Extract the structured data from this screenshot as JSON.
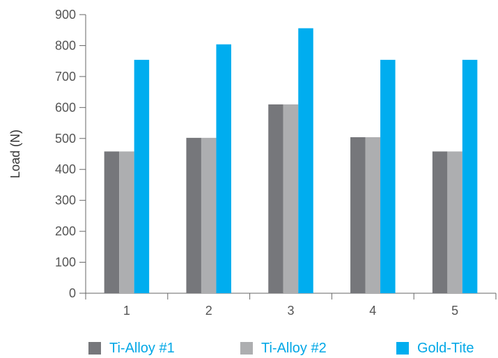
{
  "chart_data": {
    "type": "bar",
    "categories": [
      "1",
      "2",
      "3",
      "4",
      "5"
    ],
    "series": [
      {
        "name": "Ti-Alloy #1",
        "color": "#76777b",
        "values": [
          458,
          502,
          610,
          504,
          458
        ]
      },
      {
        "name": "Ti-Alloy #2",
        "color": "#adaeb0",
        "values": [
          458,
          502,
          610,
          504,
          458
        ]
      },
      {
        "name": "Gold-Tite",
        "color": "#00adef",
        "values": [
          754,
          804,
          856,
          754,
          754
        ]
      }
    ],
    "title": "",
    "xlabel": "",
    "ylabel": "Load (N)",
    "ylim": [
      0,
      900
    ],
    "yticks": [
      0,
      100,
      200,
      300,
      400,
      500,
      600,
      700,
      800,
      900
    ],
    "grid": false,
    "legend_position": "bottom"
  }
}
